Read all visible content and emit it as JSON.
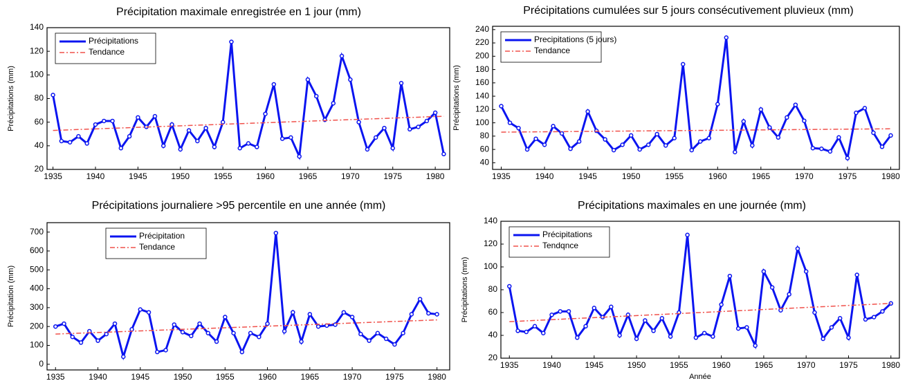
{
  "chart_data": [
    {
      "type": "line",
      "title": "Précipitation maximale enregistrée en 1 jour (mm)",
      "ylabel": "Précipitations (mm)",
      "x": [
        1935,
        1936,
        1937,
        1938,
        1939,
        1940,
        1941,
        1942,
        1943,
        1944,
        1945,
        1946,
        1947,
        1948,
        1949,
        1950,
        1951,
        1952,
        1953,
        1954,
        1955,
        1956,
        1957,
        1958,
        1959,
        1960,
        1961,
        1962,
        1963,
        1964,
        1965,
        1966,
        1967,
        1968,
        1969,
        1970,
        1971,
        1972,
        1973,
        1974,
        1975,
        1976,
        1977,
        1978,
        1979,
        1980,
        1981
      ],
      "series": [
        {
          "name": "Précipitations",
          "color": "#0a14f0",
          "values": [
            83,
            44,
            43,
            48,
            42,
            58,
            61,
            61,
            38,
            48,
            64,
            56,
            65,
            40,
            58,
            37,
            53,
            44,
            55,
            39,
            60,
            128,
            38,
            42,
            39,
            67,
            92,
            46,
            47,
            31,
            96,
            82,
            62,
            76,
            116,
            96,
            60,
            37,
            47,
            55,
            38,
            93,
            54,
            56,
            61,
            68,
            33
          ]
        },
        {
          "name": "Tendance",
          "color": "#f0504a",
          "line_style": "dashdot",
          "x": [
            1935,
            1981
          ],
          "values": [
            53,
            65
          ]
        }
      ],
      "xlim": [
        1934.3,
        1981.7
      ],
      "xticks": [
        1935,
        1940,
        1945,
        1950,
        1955,
        1960,
        1965,
        1970,
        1975,
        1980
      ],
      "ylim": [
        20,
        140
      ],
      "yticks": [
        20,
        40,
        60,
        80,
        100,
        120,
        140
      ],
      "legend": "upper left"
    },
    {
      "type": "line",
      "title": "Précipitations cumulées sur 5 jours consécutivement pluvieux (mm)",
      "ylabel": "Précipitations (mm)",
      "x": [
        1935,
        1936,
        1937,
        1938,
        1939,
        1940,
        1941,
        1942,
        1943,
        1944,
        1945,
        1946,
        1947,
        1948,
        1949,
        1950,
        1951,
        1952,
        1953,
        1954,
        1955,
        1956,
        1957,
        1958,
        1959,
        1960,
        1961,
        1962,
        1963,
        1964,
        1965,
        1966,
        1967,
        1968,
        1969,
        1970,
        1971,
        1972,
        1973,
        1974,
        1975,
        1976,
        1977,
        1978,
        1979,
        1980
      ],
      "series": [
        {
          "name": "Precipitations (5 jours)",
          "color": "#0a14f0",
          "values": [
            125,
            100,
            92,
            60,
            76,
            67,
            95,
            84,
            61,
            72,
            117,
            88,
            75,
            59,
            67,
            81,
            60,
            67,
            83,
            66,
            77,
            188,
            59,
            72,
            77,
            128,
            228,
            56,
            102,
            66,
            120,
            93,
            78,
            108,
            127,
            103,
            62,
            61,
            57,
            78,
            47,
            115,
            122,
            85,
            64,
            81
          ]
        },
        {
          "name": "Tendance",
          "color": "#f0504a",
          "line_style": "dashdot",
          "x": [
            1935,
            1980
          ],
          "values": [
            86,
            91
          ]
        }
      ],
      "xlim": [
        1934,
        1981
      ],
      "xticks": [
        1935,
        1940,
        1945,
        1950,
        1955,
        1960,
        1965,
        1970,
        1975,
        1980
      ],
      "ylim": [
        30,
        245
      ],
      "yticks": [
        40,
        60,
        80,
        100,
        120,
        140,
        160,
        180,
        200,
        220,
        240
      ],
      "legend": "upper left"
    },
    {
      "type": "line",
      "title": "Précipitations journaliere >95 percentile en une année (mm)",
      "ylabel": "Précipitation (mm)",
      "x": [
        1935,
        1936,
        1937,
        1938,
        1939,
        1940,
        1941,
        1942,
        1943,
        1944,
        1945,
        1946,
        1947,
        1948,
        1949,
        1950,
        1951,
        1952,
        1953,
        1954,
        1955,
        1956,
        1957,
        1958,
        1959,
        1960,
        1961,
        1962,
        1963,
        1964,
        1965,
        1966,
        1967,
        1968,
        1969,
        1970,
        1971,
        1972,
        1973,
        1974,
        1975,
        1976,
        1977,
        1978,
        1979,
        1980
      ],
      "series": [
        {
          "name": "Précipitation",
          "color": "#0a14f0",
          "values": [
            200,
            215,
            145,
            115,
            175,
            125,
            160,
            215,
            40,
            185,
            290,
            275,
            65,
            75,
            210,
            170,
            150,
            215,
            165,
            120,
            250,
            165,
            65,
            165,
            145,
            215,
            695,
            175,
            275,
            120,
            265,
            200,
            205,
            210,
            275,
            250,
            160,
            125,
            165,
            135,
            105,
            165,
            265,
            345,
            270,
            265
          ]
        },
        {
          "name": "Tendance",
          "color": "#f0504a",
          "line_style": "dashdot",
          "x": [
            1935,
            1980
          ],
          "values": [
            160,
            235
          ]
        }
      ],
      "xlim": [
        1934,
        1981.5
      ],
      "xticks": [
        1935,
        1940,
        1945,
        1950,
        1955,
        1960,
        1965,
        1970,
        1975,
        1980
      ],
      "ylim": [
        -30,
        750
      ],
      "yticks": [
        0,
        100,
        200,
        300,
        400,
        500,
        600,
        700
      ],
      "legend": "upper center"
    },
    {
      "type": "line",
      "title": "Précipitations maximales en une journée (mm)",
      "ylabel": "Précipitations (mm)",
      "xlabel": "Année",
      "x": [
        1935,
        1936,
        1937,
        1938,
        1939,
        1940,
        1941,
        1942,
        1943,
        1944,
        1945,
        1946,
        1947,
        1948,
        1949,
        1950,
        1951,
        1952,
        1953,
        1954,
        1955,
        1956,
        1957,
        1958,
        1959,
        1960,
        1961,
        1962,
        1963,
        1964,
        1965,
        1966,
        1967,
        1968,
        1969,
        1970,
        1971,
        1972,
        1973,
        1974,
        1975,
        1976,
        1977,
        1978,
        1979,
        1980
      ],
      "series": [
        {
          "name": "Précipitations",
          "color": "#0a14f0",
          "values": [
            83,
            44,
            43,
            48,
            42,
            58,
            61,
            61,
            38,
            48,
            64,
            56,
            65,
            40,
            58,
            37,
            53,
            44,
            55,
            39,
            60,
            128,
            38,
            42,
            39,
            67,
            92,
            46,
            47,
            31,
            96,
            82,
            62,
            76,
            116,
            96,
            60,
            37,
            47,
            55,
            38,
            93,
            54,
            56,
            61,
            68
          ]
        },
        {
          "name": "Tendqnce",
          "color": "#f0504a",
          "line_style": "dashdot",
          "x": [
            1935,
            1980
          ],
          "values": [
            52,
            68
          ]
        }
      ],
      "xlim": [
        1934,
        1981
      ],
      "xticks": [
        1935,
        1940,
        1945,
        1950,
        1955,
        1960,
        1965,
        1970,
        1975,
        1980
      ],
      "ylim": [
        20,
        140
      ],
      "yticks": [
        20,
        40,
        60,
        80,
        100,
        120,
        140
      ],
      "legend": "upper left"
    }
  ]
}
